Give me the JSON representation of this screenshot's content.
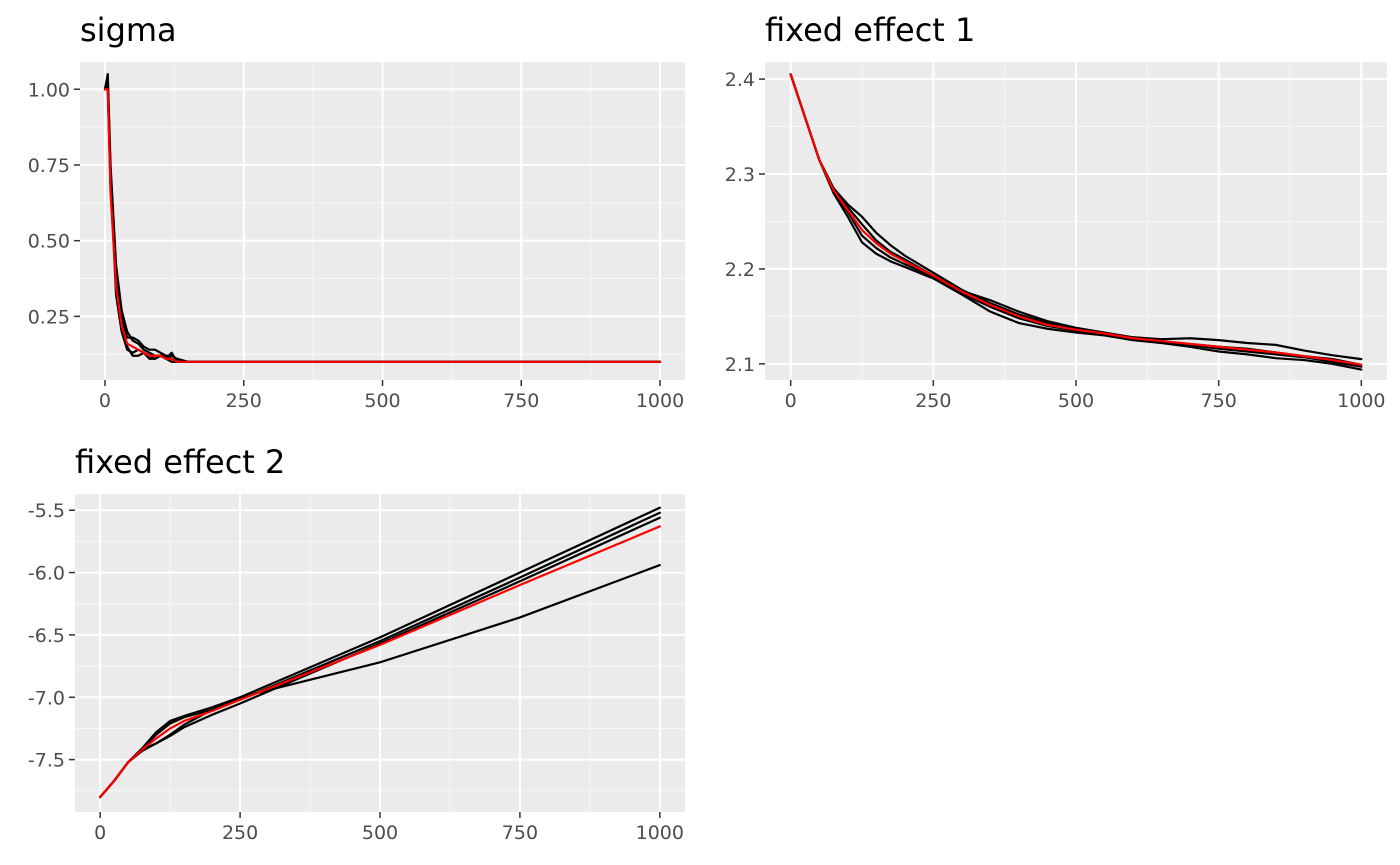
{
  "colors": {
    "panel_background": "#ebebeb",
    "grid_major": "#ffffff",
    "grid_minor": "#f7f7f7",
    "tick": "#333333",
    "tick_label": "#4d4d4d",
    "chain_line": "#000000",
    "mean_line": "#ff0000"
  },
  "chart_data": [
    {
      "type": "line",
      "title": "sigma",
      "xlabel": "",
      "ylabel": "",
      "xlim": [
        -45,
        1045
      ],
      "ylim": [
        0.04,
        1.09
      ],
      "x_ticks": [
        0,
        250,
        500,
        750,
        1000
      ],
      "x_tick_labels": [
        "0",
        "250",
        "500",
        "750",
        "1000"
      ],
      "y_ticks": [
        0.25,
        0.5,
        0.75,
        1.0
      ],
      "y_tick_labels": [
        "0.25",
        "0.50",
        "0.75",
        "1.00"
      ],
      "grid": true,
      "series": [
        {
          "role": "chain",
          "x": [
            0,
            5,
            10,
            20,
            30,
            40,
            50,
            60,
            70,
            80,
            90,
            100,
            110,
            120,
            130,
            150,
            175,
            200,
            250,
            500,
            750,
            1000
          ],
          "values": [
            1.0,
            1.05,
            0.75,
            0.42,
            0.27,
            0.2,
            0.17,
            0.16,
            0.14,
            0.13,
            0.12,
            0.12,
            0.11,
            0.13,
            0.1,
            0.1,
            0.1,
            0.1,
            0.1,
            0.1,
            0.1,
            0.1
          ]
        },
        {
          "role": "chain",
          "x": [
            0,
            5,
            10,
            20,
            30,
            40,
            50,
            60,
            70,
            80,
            90,
            100,
            110,
            120,
            130,
            150,
            175,
            200,
            250,
            500,
            750,
            1000
          ],
          "values": [
            1.0,
            1.04,
            0.72,
            0.35,
            0.22,
            0.15,
            0.12,
            0.12,
            0.13,
            0.12,
            0.11,
            0.12,
            0.11,
            0.1,
            0.1,
            0.1,
            0.1,
            0.1,
            0.1,
            0.1,
            0.1,
            0.1
          ]
        },
        {
          "role": "chain",
          "x": [
            0,
            5,
            10,
            20,
            30,
            40,
            50,
            60,
            70,
            80,
            90,
            100,
            110,
            120,
            130,
            150,
            175,
            200,
            250,
            500,
            750,
            1000
          ],
          "values": [
            1.0,
            1.02,
            0.7,
            0.32,
            0.2,
            0.14,
            0.13,
            0.14,
            0.13,
            0.11,
            0.11,
            0.12,
            0.12,
            0.11,
            0.1,
            0.1,
            0.1,
            0.1,
            0.1,
            0.1,
            0.1,
            0.1
          ]
        },
        {
          "role": "chain",
          "x": [
            0,
            5,
            10,
            20,
            30,
            40,
            50,
            60,
            70,
            80,
            90,
            100,
            110,
            120,
            130,
            150,
            175,
            200,
            250,
            500,
            750,
            1000
          ],
          "values": [
            1.0,
            1.0,
            0.68,
            0.38,
            0.25,
            0.18,
            0.18,
            0.17,
            0.15,
            0.14,
            0.14,
            0.13,
            0.12,
            0.12,
            0.11,
            0.1,
            0.1,
            0.1,
            0.1,
            0.1,
            0.1,
            0.1
          ]
        },
        {
          "role": "mean",
          "x": [
            0,
            5,
            10,
            20,
            30,
            40,
            50,
            60,
            70,
            80,
            90,
            100,
            110,
            120,
            130,
            150,
            175,
            200,
            250,
            500,
            750,
            1000
          ],
          "values": [
            1.0,
            1.0,
            0.66,
            0.35,
            0.22,
            0.16,
            0.15,
            0.14,
            0.13,
            0.12,
            0.12,
            0.12,
            0.11,
            0.11,
            0.1,
            0.1,
            0.1,
            0.1,
            0.1,
            0.1,
            0.1,
            0.1
          ]
        }
      ]
    },
    {
      "type": "line",
      "title": "fixed effect 1",
      "xlabel": "",
      "ylabel": "",
      "xlim": [
        -45,
        1045
      ],
      "ylim": [
        2.083,
        2.418
      ],
      "x_ticks": [
        0,
        250,
        500,
        750,
        1000
      ],
      "x_tick_labels": [
        "0",
        "250",
        "500",
        "750",
        "1000"
      ],
      "y_ticks": [
        2.1,
        2.2,
        2.3,
        2.4
      ],
      "y_tick_labels": [
        "2.1",
        "2.2",
        "2.3",
        "2.4"
      ],
      "grid": true,
      "series": [
        {
          "role": "chain",
          "x": [
            0,
            25,
            50,
            75,
            100,
            125,
            150,
            175,
            200,
            250,
            300,
            350,
            400,
            450,
            500,
            550,
            600,
            650,
            700,
            750,
            800,
            850,
            900,
            950,
            1000
          ],
          "values": [
            2.405,
            2.36,
            2.315,
            2.285,
            2.265,
            2.247,
            2.23,
            2.218,
            2.21,
            2.193,
            2.177,
            2.167,
            2.155,
            2.145,
            2.138,
            2.133,
            2.128,
            2.126,
            2.127,
            2.125,
            2.122,
            2.12,
            2.114,
            2.109,
            2.105
          ]
        },
        {
          "role": "chain",
          "x": [
            0,
            25,
            50,
            75,
            100,
            125,
            150,
            175,
            200,
            250,
            300,
            350,
            400,
            450,
            500,
            550,
            600,
            650,
            700,
            750,
            800,
            850,
            900,
            950,
            1000
          ],
          "values": [
            2.405,
            2.36,
            2.315,
            2.28,
            2.255,
            2.228,
            2.216,
            2.208,
            2.202,
            2.19,
            2.173,
            2.155,
            2.143,
            2.137,
            2.133,
            2.13,
            2.125,
            2.122,
            2.118,
            2.113,
            2.11,
            2.106,
            2.104,
            2.1,
            2.094
          ]
        },
        {
          "role": "chain",
          "x": [
            0,
            25,
            50,
            75,
            100,
            125,
            150,
            175,
            200,
            250,
            300,
            350,
            400,
            450,
            500,
            550,
            600,
            650,
            700,
            750,
            800,
            850,
            900,
            950,
            1000
          ],
          "values": [
            2.405,
            2.36,
            2.315,
            2.282,
            2.26,
            2.235,
            2.222,
            2.212,
            2.205,
            2.192,
            2.174,
            2.16,
            2.148,
            2.14,
            2.135,
            2.131,
            2.127,
            2.124,
            2.12,
            2.116,
            2.113,
            2.11,
            2.107,
            2.102,
            2.097
          ]
        },
        {
          "role": "chain",
          "x": [
            0,
            25,
            50,
            75,
            100,
            125,
            150,
            175,
            200,
            250,
            300,
            350,
            400,
            450,
            500,
            550,
            600,
            650,
            700,
            750,
            800,
            850,
            900,
            950,
            1000
          ],
          "values": [
            2.405,
            2.36,
            2.315,
            2.285,
            2.268,
            2.255,
            2.238,
            2.225,
            2.214,
            2.196,
            2.178,
            2.164,
            2.152,
            2.143,
            2.136,
            2.132,
            2.126,
            2.124,
            2.121,
            2.118,
            2.116,
            2.112,
            2.108,
            2.105,
            2.099
          ]
        },
        {
          "role": "mean",
          "x": [
            0,
            25,
            50,
            75,
            100,
            125,
            150,
            175,
            200,
            250,
            300,
            350,
            400,
            450,
            500,
            550,
            600,
            650,
            700,
            750,
            800,
            850,
            900,
            950,
            1000
          ],
          "values": [
            2.405,
            2.36,
            2.315,
            2.283,
            2.262,
            2.241,
            2.227,
            2.216,
            2.208,
            2.193,
            2.176,
            2.162,
            2.15,
            2.141,
            2.136,
            2.132,
            2.127,
            2.124,
            2.121,
            2.118,
            2.115,
            2.112,
            2.108,
            2.104,
            2.099
          ]
        }
      ]
    },
    {
      "type": "line",
      "title": "fixed effect 2",
      "xlabel": "",
      "ylabel": "",
      "xlim": [
        -45,
        1045
      ],
      "ylim": [
        -7.92,
        -5.37
      ],
      "x_ticks": [
        0,
        250,
        500,
        750,
        1000
      ],
      "x_tick_labels": [
        "0",
        "250",
        "500",
        "750",
        "1000"
      ],
      "y_ticks": [
        -7.5,
        -7.0,
        -6.5,
        -6.0,
        -5.5
      ],
      "y_tick_labels": [
        "-7.5",
        "-7.0",
        "-6.5",
        "-6.0",
        "-5.5"
      ],
      "grid": true,
      "series": [
        {
          "role": "chain",
          "x": [
            0,
            25,
            50,
            75,
            100,
            125,
            150,
            200,
            250,
            500,
            750,
            1000
          ],
          "values": [
            -7.8,
            -7.67,
            -7.52,
            -7.41,
            -7.28,
            -7.19,
            -7.15,
            -7.08,
            -7.0,
            -6.52,
            -6.0,
            -5.48
          ]
        },
        {
          "role": "chain",
          "x": [
            0,
            25,
            50,
            75,
            100,
            125,
            150,
            200,
            250,
            500,
            750,
            1000
          ],
          "values": [
            -7.8,
            -7.67,
            -7.52,
            -7.41,
            -7.3,
            -7.21,
            -7.16,
            -7.1,
            -7.02,
            -6.55,
            -6.04,
            -5.52
          ]
        },
        {
          "role": "chain",
          "x": [
            0,
            25,
            50,
            75,
            100,
            125,
            150,
            200,
            250,
            500,
            750,
            1000
          ],
          "values": [
            -7.8,
            -7.67,
            -7.52,
            -7.42,
            -7.37,
            -7.31,
            -7.24,
            -7.14,
            -7.05,
            -6.57,
            -6.07,
            -5.56
          ]
        },
        {
          "role": "chain",
          "x": [
            0,
            25,
            50,
            75,
            100,
            125,
            150,
            200,
            250,
            500,
            750,
            1000
          ],
          "values": [
            -7.8,
            -7.67,
            -7.52,
            -7.43,
            -7.37,
            -7.3,
            -7.22,
            -7.1,
            -7.0,
            -6.72,
            -6.36,
            -5.94
          ]
        },
        {
          "role": "mean",
          "x": [
            0,
            25,
            50,
            75,
            100,
            125,
            150,
            200,
            250,
            500,
            750,
            1000
          ],
          "values": [
            -7.8,
            -7.67,
            -7.52,
            -7.42,
            -7.33,
            -7.25,
            -7.19,
            -7.11,
            -7.02,
            -6.58,
            -6.1,
            -5.63
          ]
        }
      ]
    }
  ]
}
